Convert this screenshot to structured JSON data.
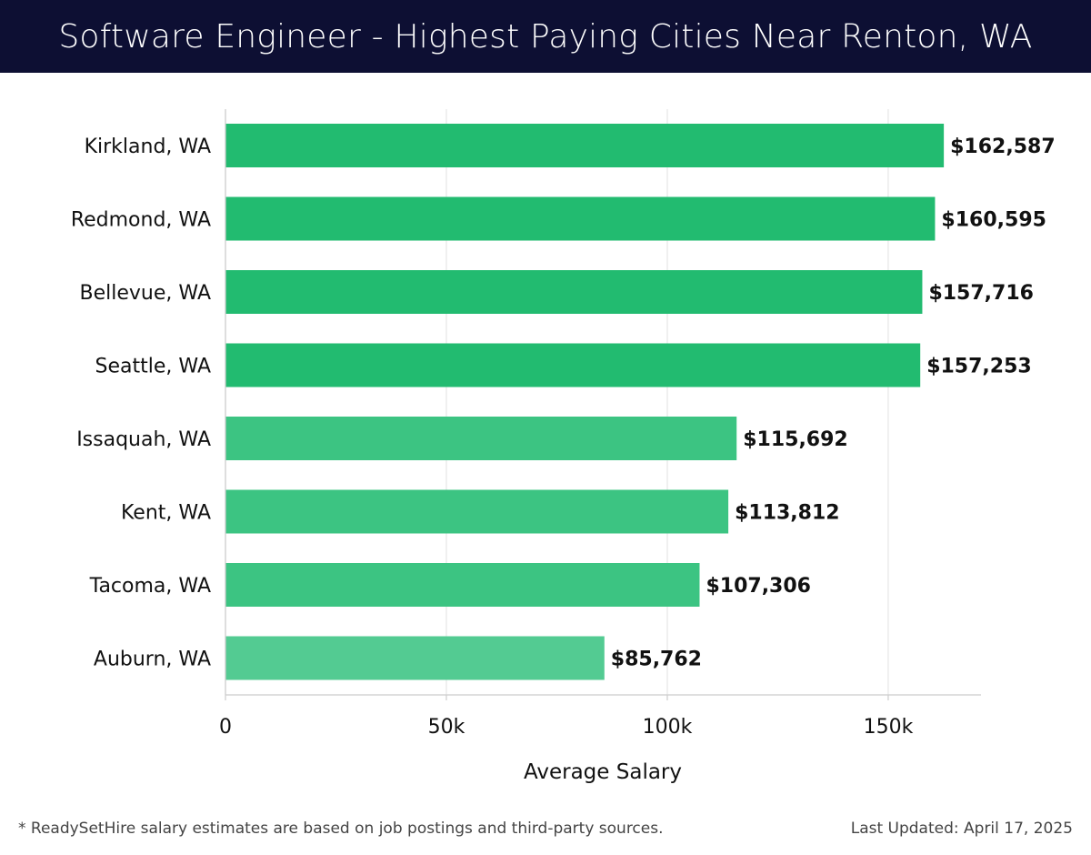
{
  "header": {
    "title": "Software Engineer - Highest Paying Cities Near Renton, WA"
  },
  "footer": {
    "note": "* ReadySetHire salary estimates are based on job postings and third-party sources.",
    "updated": "Last Updated: April 17, 2025"
  },
  "colors": {
    "header_bg": "#0d0f33",
    "bar_top": "#22bb70",
    "bar_mid": "#3cc482",
    "bar_low": "#53cb92",
    "grid": "#e6e6e6"
  },
  "chart_data": {
    "type": "bar",
    "orientation": "horizontal",
    "categories": [
      "Kirkland, WA",
      "Redmond, WA",
      "Bellevue, WA",
      "Seattle, WA",
      "Issaquah, WA",
      "Kent, WA",
      "Tacoma, WA",
      "Auburn, WA"
    ],
    "values": [
      162587,
      160595,
      157716,
      157253,
      115692,
      113812,
      107306,
      85762
    ],
    "value_labels": [
      "$162,587",
      "$160,595",
      "$157,716",
      "$157,253",
      "$115,692",
      "$113,812",
      "$107,306",
      "$85,762"
    ],
    "xlabel": "Average Salary",
    "ylabel": "",
    "xlim": [
      0,
      171000
    ],
    "xticks": [
      0,
      50000,
      100000,
      150000
    ],
    "xtick_labels": [
      "0",
      "50k",
      "100k",
      "150k"
    ],
    "grid": true
  }
}
